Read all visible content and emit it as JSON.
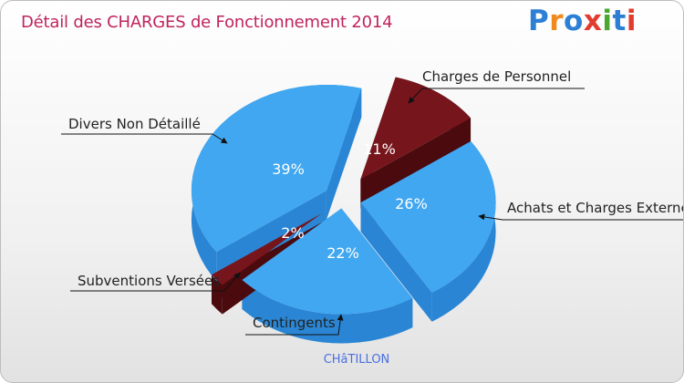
{
  "title": "Détail des CHARGES de Fonctionnement 2014",
  "logo": {
    "text": "Proxiti",
    "letters": [
      "P",
      "r",
      "o",
      "x",
      "i",
      "t",
      "i"
    ],
    "colors": [
      "#2d7fd6",
      "#f08a1c",
      "#2d7fd6",
      "#e23b2f",
      "#4aa832",
      "#2d7fd6",
      "#e23b2f"
    ]
  },
  "city": "CHâTILLON",
  "colors": {
    "blue": "#41a7f0",
    "blue_side": "#2a86d4",
    "red": "#76151b",
    "red_side": "#4a0a0e"
  },
  "chart_data": {
    "type": "pie",
    "title": "Détail des CHARGES de Fonctionnement 2014",
    "slices": [
      {
        "label": "Charges de Personnel",
        "value": 11,
        "pct_label": "11%",
        "color": "red"
      },
      {
        "label": "Achats et Charges Externes",
        "value": 26,
        "pct_label": "26%",
        "color": "blue"
      },
      {
        "label": "Contingents",
        "value": 22,
        "pct_label": "22%",
        "color": "blue"
      },
      {
        "label": "Subventions Versées",
        "value": 2,
        "pct_label": "2%",
        "color": "red"
      },
      {
        "label": "Divers Non Détaillé",
        "value": 39,
        "pct_label": "39%",
        "color": "blue"
      }
    ]
  }
}
